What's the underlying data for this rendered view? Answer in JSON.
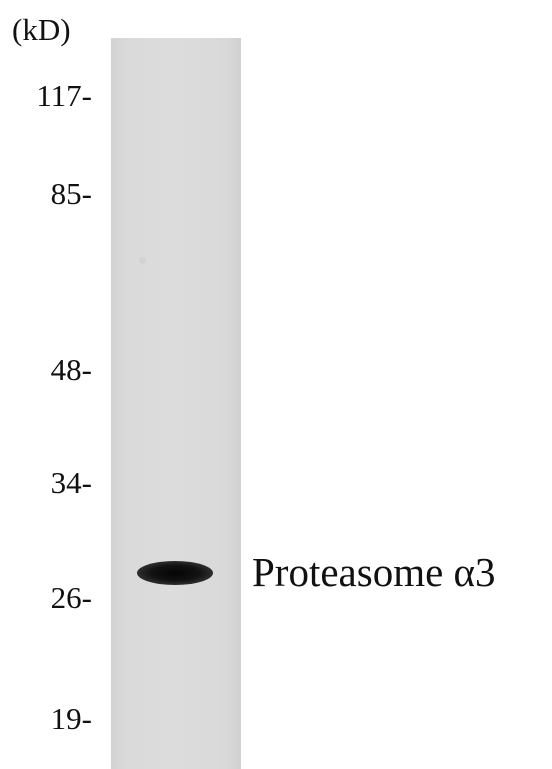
{
  "blot": {
    "unit_label": "(kD)",
    "markers": [
      "117-",
      "85-",
      "48-",
      "34-",
      "26-",
      "19-"
    ],
    "band_label": "Proteasome α3"
  }
}
